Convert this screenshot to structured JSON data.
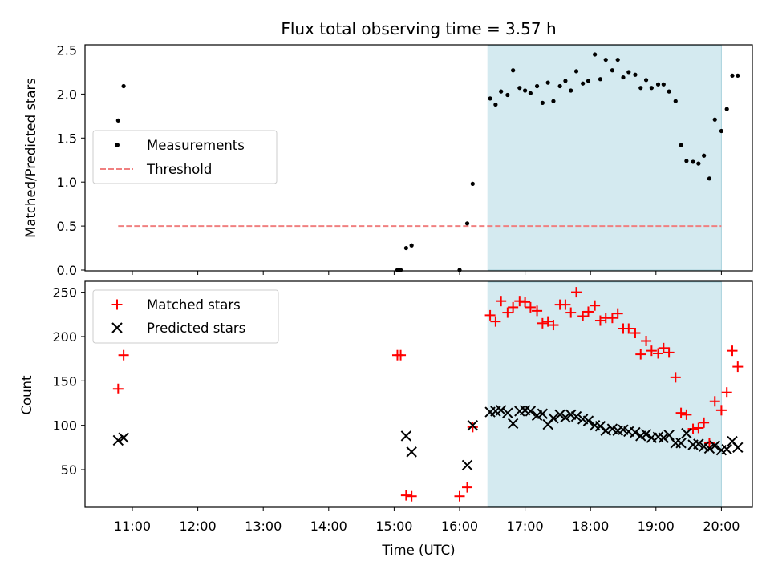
{
  "chart_data": [
    {
      "type": "scatter",
      "title": "Flux total observing time = 3.57 h",
      "xlabel": "",
      "ylabel": "Matched/Predicted stars",
      "ylim": [
        0,
        2.58
      ],
      "yticks": [
        "0.0",
        "0.5",
        "1.0",
        "1.5",
        "2.0",
        "2.5"
      ],
      "xticks_labels_shown": false,
      "shaded_region": {
        "x_start": "16:26",
        "x_end": "20:00",
        "color": "#d4eaf0"
      },
      "legend": {
        "placement": "center-left",
        "entries": [
          "Measurements",
          "Threshold"
        ]
      },
      "series": [
        {
          "name": "Measurements",
          "marker": "dot",
          "color": "#000000",
          "points": [
            [
              "10:47",
              1.7
            ],
            [
              "10:52",
              2.09
            ],
            [
              "15:03",
              0.0
            ],
            [
              "15:06",
              0.0
            ],
            [
              "15:11",
              0.25
            ],
            [
              "15:16",
              0.28
            ],
            [
              "16:00",
              0.0
            ],
            [
              "16:07",
              0.53
            ],
            [
              "16:12",
              0.98
            ],
            [
              "16:28",
              1.95
            ],
            [
              "16:33",
              1.88
            ],
            [
              "16:38",
              2.03
            ],
            [
              "16:44",
              1.99
            ],
            [
              "16:49",
              2.27
            ],
            [
              "16:55",
              2.07
            ],
            [
              "17:00",
              2.04
            ],
            [
              "17:05",
              2.01
            ],
            [
              "17:11",
              2.09
            ],
            [
              "17:16",
              1.9
            ],
            [
              "17:21",
              2.13
            ],
            [
              "17:26",
              1.92
            ],
            [
              "17:32",
              2.09
            ],
            [
              "17:37",
              2.15
            ],
            [
              "17:42",
              2.04
            ],
            [
              "17:47",
              2.26
            ],
            [
              "17:53",
              2.12
            ],
            [
              "17:58",
              2.15
            ],
            [
              "18:04",
              2.45
            ],
            [
              "18:09",
              2.17
            ],
            [
              "18:14",
              2.39
            ],
            [
              "18:20",
              2.27
            ],
            [
              "18:25",
              2.39
            ],
            [
              "18:30",
              2.19
            ],
            [
              "18:35",
              2.25
            ],
            [
              "18:41",
              2.22
            ],
            [
              "18:46",
              2.07
            ],
            [
              "18:51",
              2.16
            ],
            [
              "18:56",
              2.07
            ],
            [
              "19:02",
              2.11
            ],
            [
              "19:07",
              2.11
            ],
            [
              "19:12",
              2.03
            ],
            [
              "19:18",
              1.92
            ],
            [
              "19:23",
              1.42
            ],
            [
              "19:28",
              1.24
            ],
            [
              "19:34",
              1.23
            ],
            [
              "19:39",
              1.21
            ],
            [
              "19:44",
              1.3
            ],
            [
              "19:49",
              1.04
            ],
            [
              "19:54",
              1.71
            ],
            [
              "20:00",
              1.58
            ],
            [
              "20:05",
              1.83
            ],
            [
              "20:10",
              2.21
            ],
            [
              "20:15",
              2.21
            ]
          ]
        },
        {
          "name": "Threshold",
          "marker": "dashed-line",
          "color": "#f08080",
          "y": 0.5,
          "x_range": [
            "10:47",
            "20:00"
          ]
        }
      ]
    },
    {
      "type": "scatter",
      "title": "",
      "xlabel": "Time (UTC)",
      "ylabel": "Count",
      "ylim": [
        12,
        262
      ],
      "yticks": [
        "50",
        "100",
        "150",
        "200",
        "250"
      ],
      "xticks": [
        "11:00",
        "12:00",
        "13:00",
        "14:00",
        "15:00",
        "16:00",
        "17:00",
        "18:00",
        "19:00",
        "20:00"
      ],
      "shaded_region": {
        "x_start": "16:26",
        "x_end": "20:00",
        "color": "#d4eaf0"
      },
      "legend": {
        "placement": "top-left",
        "entries": [
          "Matched stars",
          "Predicted stars"
        ]
      },
      "series": [
        {
          "name": "Matched stars",
          "marker": "plus",
          "color": "#ff0000",
          "points": [
            [
              "10:47",
              141
            ],
            [
              "10:52",
              179
            ],
            [
              "15:03",
              179
            ],
            [
              "15:06",
              179
            ],
            [
              "15:11",
              21
            ],
            [
              "15:16",
              20
            ],
            [
              "16:00",
              20
            ],
            [
              "16:07",
              30
            ],
            [
              "16:12",
              98
            ],
            [
              "16:28",
              224
            ],
            [
              "16:33",
              217
            ],
            [
              "16:38",
              240
            ],
            [
              "16:44",
              227
            ],
            [
              "16:49",
              233
            ],
            [
              "16:55",
              240
            ],
            [
              "17:00",
              239
            ],
            [
              "17:05",
              233
            ],
            [
              "17:11",
              229
            ],
            [
              "17:16",
              215
            ],
            [
              "17:21",
              217
            ],
            [
              "17:26",
              213
            ],
            [
              "17:32",
              236
            ],
            [
              "17:37",
              236
            ],
            [
              "17:42",
              227
            ],
            [
              "17:47",
              250
            ],
            [
              "17:53",
              223
            ],
            [
              "17:58",
              228
            ],
            [
              "18:04",
              235
            ],
            [
              "18:09",
              218
            ],
            [
              "18:14",
              221
            ],
            [
              "18:20",
              221
            ],
            [
              "18:25",
              226
            ],
            [
              "18:30",
              209
            ],
            [
              "18:35",
              209
            ],
            [
              "18:41",
              204
            ],
            [
              "18:46",
              180
            ],
            [
              "18:51",
              195
            ],
            [
              "18:56",
              184
            ],
            [
              "19:02",
              181
            ],
            [
              "19:07",
              187
            ],
            [
              "19:12",
              182
            ],
            [
              "19:18",
              154
            ],
            [
              "19:23",
              114
            ],
            [
              "19:28",
              112
            ],
            [
              "19:34",
              96
            ],
            [
              "19:39",
              97
            ],
            [
              "19:44",
              103
            ],
            [
              "19:49",
              80
            ],
            [
              "19:54",
              127
            ],
            [
              "20:00",
              117
            ],
            [
              "20:05",
              137
            ],
            [
              "20:10",
              184
            ],
            [
              "20:15",
              166
            ]
          ]
        },
        {
          "name": "Predicted stars",
          "marker": "x",
          "color": "#000000",
          "points": [
            [
              "10:47",
              83
            ],
            [
              "10:52",
              86
            ],
            [
              "15:11",
              88
            ],
            [
              "15:16",
              70
            ],
            [
              "16:07",
              55
            ],
            [
              "16:12",
              100
            ],
            [
              "16:28",
              115
            ],
            [
              "16:33",
              116
            ],
            [
              "16:38",
              117
            ],
            [
              "16:44",
              114
            ],
            [
              "16:49",
              102
            ],
            [
              "16:55",
              116
            ],
            [
              "17:00",
              117
            ],
            [
              "17:05",
              116
            ],
            [
              "17:11",
              111
            ],
            [
              "17:16",
              113
            ],
            [
              "17:21",
              101
            ],
            [
              "17:26",
              108
            ],
            [
              "17:32",
              112
            ],
            [
              "17:37",
              109
            ],
            [
              "17:42",
              112
            ],
            [
              "17:47",
              110
            ],
            [
              "17:53",
              107
            ],
            [
              "17:58",
              105
            ],
            [
              "18:04",
              100
            ],
            [
              "18:09",
              99
            ],
            [
              "18:14",
              94
            ],
            [
              "18:20",
              96
            ],
            [
              "18:25",
              94
            ],
            [
              "18:30",
              95
            ],
            [
              "18:35",
              93
            ],
            [
              "18:41",
              92
            ],
            [
              "18:46",
              88
            ],
            [
              "18:51",
              90
            ],
            [
              "18:56",
              86
            ],
            [
              "19:02",
              87
            ],
            [
              "19:07",
              86
            ],
            [
              "19:12",
              89
            ],
            [
              "19:18",
              80
            ],
            [
              "19:23",
              80
            ],
            [
              "19:28",
              91
            ],
            [
              "19:34",
              78
            ],
            [
              "19:39",
              79
            ],
            [
              "19:44",
              76
            ],
            [
              "19:49",
              74
            ],
            [
              "19:54",
              77
            ],
            [
              "20:00",
              72
            ],
            [
              "20:05",
              73
            ],
            [
              "20:10",
              82
            ],
            [
              "20:15",
              75
            ]
          ]
        }
      ]
    }
  ]
}
